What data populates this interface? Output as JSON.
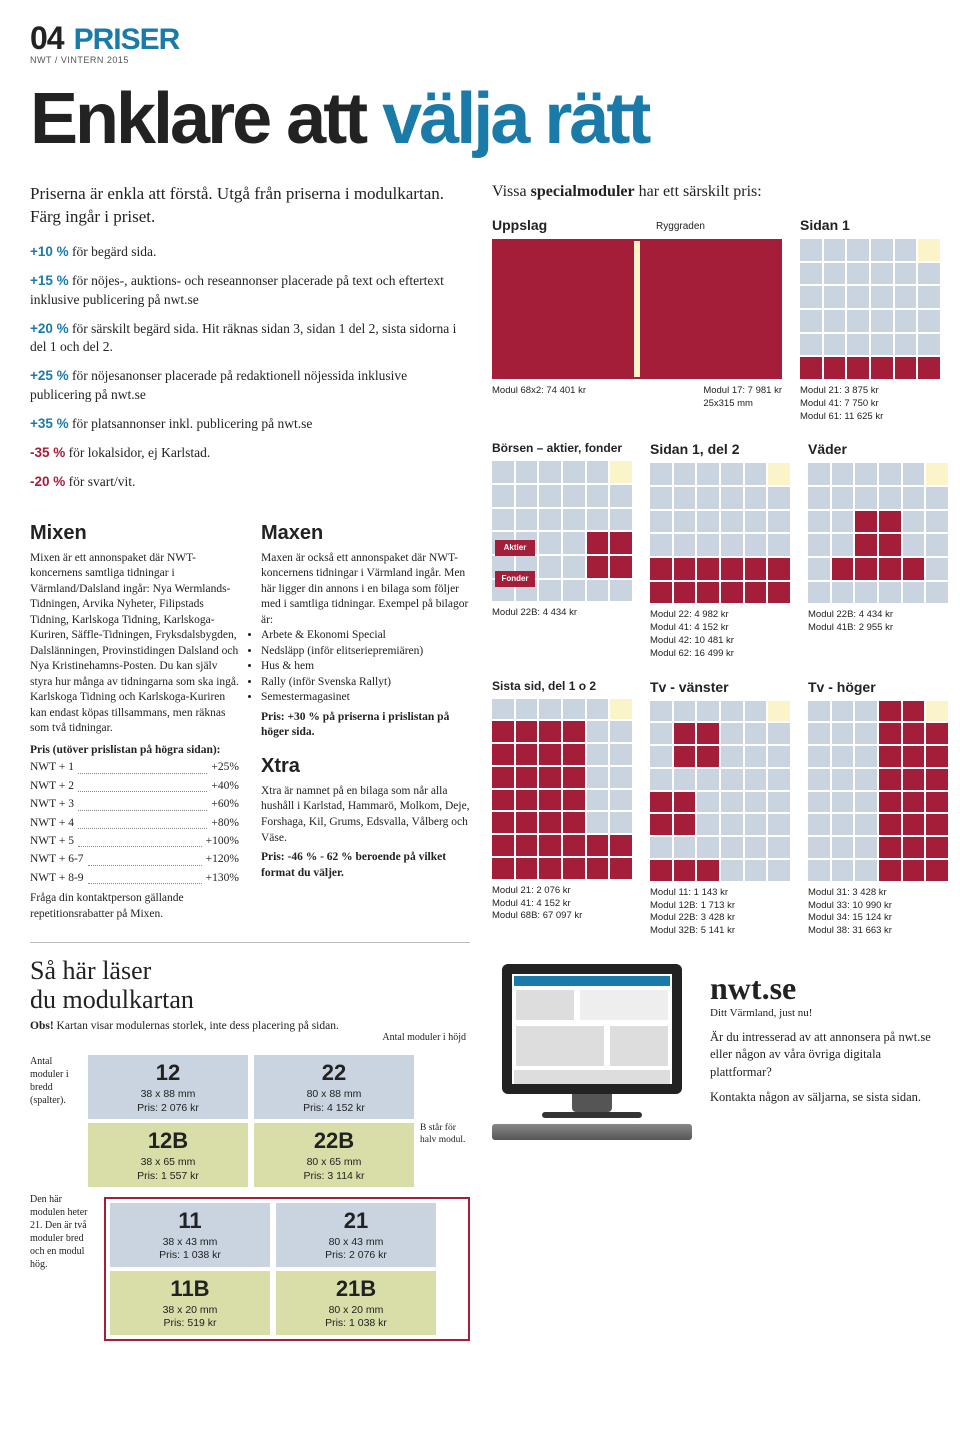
{
  "header": {
    "pageno": "04",
    "section": "PRISER",
    "issue": "NWT / VINTERN 2015"
  },
  "hero": {
    "black": "Enklare att ",
    "blue": "välja rätt"
  },
  "intro": "Priserna är enkla att förstå. Utgå från priserna i modulkartan. Färg ingår i priset.",
  "surcharges": [
    {
      "pct": "+10 %",
      "color": "b",
      "text": " för begärd sida."
    },
    {
      "pct": "+15 %",
      "color": "b",
      "text": " för nöjes-, auktions- och reseannonser placerade på text och eftertext inklusive publicering på nwt.se"
    },
    {
      "pct": "+20 %",
      "color": "b",
      "text": " för särskilt begärd sida. Hit räknas sidan 3, sidan 1 del 2, sista sidorna i del 1 och del 2."
    },
    {
      "pct": "+25 %",
      "color": "b",
      "text": " för nöjesanonser placerade på redaktionell nöjessida inklusive publicering på nwt.se"
    },
    {
      "pct": "+35 %",
      "color": "b",
      "text": " för platsannonser inkl. publicering på nwt.se"
    },
    {
      "pct": "-35 %",
      "color": "r",
      "text": " för lokalsidor, ej Karlstad."
    },
    {
      "pct": "-20 %",
      "color": "r",
      "text": " för svart/vit."
    }
  ],
  "mixen": {
    "title": "Mixen",
    "body": "Mixen är ett annonspaket där NWT-koncernens samtliga tidningar i Värmland/Dalsland ingår: Nya Wermlands-Tidningen, Arvika Nyheter, Filipstads Tidning, Karlskoga Tidning, Karlskoga-Kuriren, Säffle-Tidningen, Fryksdalsbygden, Dalslänningen, Provinstidingen Dalsland och Nya Kristinehamns-Posten. Du kan själv styra hur många av tidningarna som ska ingå. Karlskoga Tidning och Karlskoga-Kuriren kan endast köpas tillsammans, men räknas som två tidningar.",
    "pris_head": "Pris (utöver prislistan på högra sidan):",
    "lines": [
      {
        "k": "NWT + 1",
        "v": "+25%"
      },
      {
        "k": "NWT + 2",
        "v": "+40%"
      },
      {
        "k": "NWT + 3",
        "v": "+60%"
      },
      {
        "k": "NWT + 4",
        "v": "+80%"
      },
      {
        "k": "NWT + 5",
        "v": "+100%"
      },
      {
        "k": "NWT + 6-7",
        "v": "+120%"
      },
      {
        "k": "NWT + 8-9",
        "v": "+130%"
      }
    ],
    "foot": "Fråga din kontaktperson gällande repetitionsrabatter på Mixen."
  },
  "maxen": {
    "title": "Maxen",
    "body": "Maxen är också ett annonspaket där NWT-koncernens tidningar i Värmland ingår. Men här ligger din annons i en bilaga som följer med i samtliga tidningar. Exempel på bilagor är:",
    "bullets": [
      "Arbete & Ekonomi Special",
      "Nedsläpp (inför elitseriepremiären)",
      "Hus & hem",
      "Rally (inför Svenska Rallyt)",
      "Semestermagasinet"
    ],
    "price": "Pris: +30 % på priserna i prislistan på höger sida."
  },
  "xtra": {
    "title": "Xtra",
    "body": "Xtra är namnet på en bilaga som når alla hushåll i Karlstad, Hammarö, Molkom, Deje, Forshaga, Kil, Grums, Edsvalla, Vålberg och Väse.",
    "price": "Pris: -46 % - 62 % beroende på vilket format du väljer."
  },
  "readmap": {
    "title_l1": "Så här läser",
    "title_l2": "du modulkartan",
    "note_pre": "Obs!",
    "note": " Kartan visar modulernas storlek, inte dess placering på sidan.",
    "top_label": "Antal moduler i höjd",
    "left_label": "Antal moduler i bredd (spalter).",
    "left_label2": "Den här modulen heter 21. Den är två moduler bred och en modul hög.",
    "bnote": "B står för halv modul.",
    "cells": {
      "c12": {
        "n": "12",
        "dim": "38 x 88 mm",
        "p": "Pris: 2 076 kr"
      },
      "c22": {
        "n": "22",
        "dim": "80 x 88 mm",
        "p": "Pris: 4 152 kr"
      },
      "c12b": {
        "n": "12B",
        "dim": "38 x 65 mm",
        "p": "Pris: 1 557 kr"
      },
      "c22b": {
        "n": "22B",
        "dim": "80 x 65 mm",
        "p": "Pris: 3 114 kr"
      },
      "c11": {
        "n": "11",
        "dim": "38 x 43 mm",
        "p": "Pris: 1 038 kr"
      },
      "c21": {
        "n": "21",
        "dim": "80 x 43 mm",
        "p": "Pris: 2 076 kr"
      },
      "c11b": {
        "n": "11B",
        "dim": "38 x 20 mm",
        "p": "Pris: 519 kr"
      },
      "c21b": {
        "n": "21B",
        "dim": "80 x 20 mm",
        "p": "Pris: 1 038 kr"
      }
    }
  },
  "special_intro": {
    "pre": "Vissa ",
    "b": "specialmoduler",
    "post": " har ett särskilt pris:"
  },
  "modules": {
    "uppslag": {
      "title": "Uppslag",
      "sub": "Ryggraden",
      "p1": "Modul 68x2: 74 401 kr",
      "p2": "Modul 17: 7 981 kr",
      "p3": "25x315 mm"
    },
    "sidan1": {
      "title": "Sidan 1",
      "lines": [
        "Modul 21:  3 875 kr",
        "Modul 41:  7 750 kr",
        "Modul 61: 11 625 kr"
      ]
    },
    "borsen": {
      "title": "Börsen – aktier, fonder",
      "l1": "Aktier",
      "l2": "Fonder",
      "lines": [
        "Modul 22B:  4 434 kr"
      ]
    },
    "sidan1d2": {
      "title": "Sidan 1, del 2",
      "lines": [
        "Modul 22:   4 982 kr",
        "Modul 41:   4 152 kr",
        "Modul 42: 10 481 kr",
        "Modul 62: 16 499 kr"
      ]
    },
    "vader": {
      "title": "Väder",
      "lines": [
        "Modul 22B: 4 434 kr",
        "Modul 41B: 2 955 kr"
      ]
    },
    "sistasid": {
      "title": "Sista sid, del 1 o 2",
      "lines": [
        "Modul 21:    2 076 kr",
        "Modul 41:    4 152 kr",
        "Modul 68B: 67 097 kr"
      ]
    },
    "tvv": {
      "title": "Tv - vänster",
      "lines": [
        "Modul 11:    1 143 kr",
        "Modul 12B:  1 713 kr",
        "Modul 22B: 3 428 kr",
        "Modul 32B:  5 141 kr"
      ]
    },
    "tvh": {
      "title": "Tv - höger",
      "lines": [
        "Modul 31:    3 428 kr",
        "Modul 33: 10 990 kr",
        "Modul 34:  15 124 kr",
        "Modul 38:  31 663 kr"
      ]
    }
  },
  "nwtse": {
    "logo": "nwt.se",
    "tag": "Ditt Värmland, just nu!",
    "p1": "Är du intresserad av att annonsera på nwt.se eller någon av våra övriga digitala plattformar?",
    "p2": "Kontakta någon av säljarna, se sista sidan."
  },
  "colors": {
    "accent": "#1a7aa8",
    "crimson": "#a41e3a",
    "cell": "#c9d4e0",
    "highlight": "#faf4c8",
    "olive": "#d9dea8"
  }
}
